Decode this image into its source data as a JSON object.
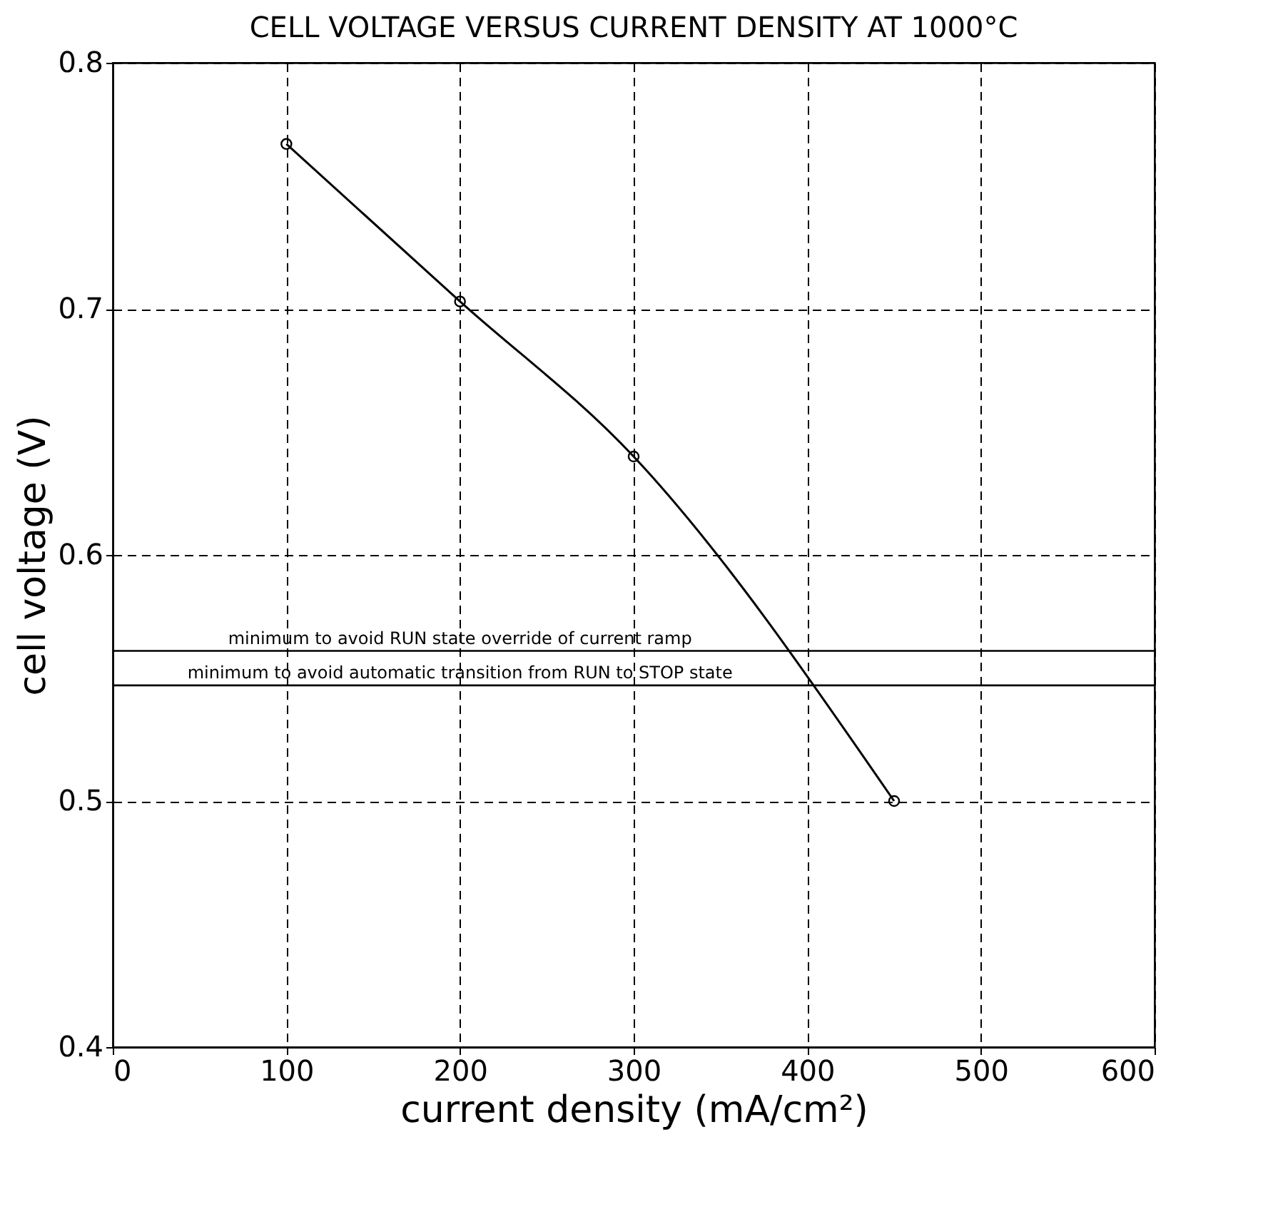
{
  "chart_data": {
    "type": "line",
    "title": "CELL VOLTAGE VERSUS CURRENT DENSITY AT 1000°C",
    "xlabel": "current density (mA/cm²)",
    "ylabel": "cell voltage (V)",
    "x": [
      100,
      200,
      300,
      450
    ],
    "series": [
      {
        "color": "#000000",
        "values": [
          0.767,
          0.703,
          0.64,
          0.5
        ]
      }
    ],
    "xlim": [
      0,
      600
    ],
    "xticks": [
      0,
      100,
      200,
      300,
      400,
      500,
      600
    ],
    "ylim": [
      0.4,
      0.8
    ],
    "yticks": [
      0.4,
      0.5,
      0.6,
      0.7,
      0.8
    ],
    "grid": true,
    "marker": "circle",
    "line_style": "solid",
    "ref_lines": [
      {
        "axis": "y",
        "value": 0.561,
        "label": "minimum to avoid RUN state override of current ramp",
        "color": "#000000"
      },
      {
        "axis": "y",
        "value": 0.547,
        "label": "minimum to avoid automatic transition from RUN to STOP state",
        "color": "#000000"
      }
    ]
  }
}
